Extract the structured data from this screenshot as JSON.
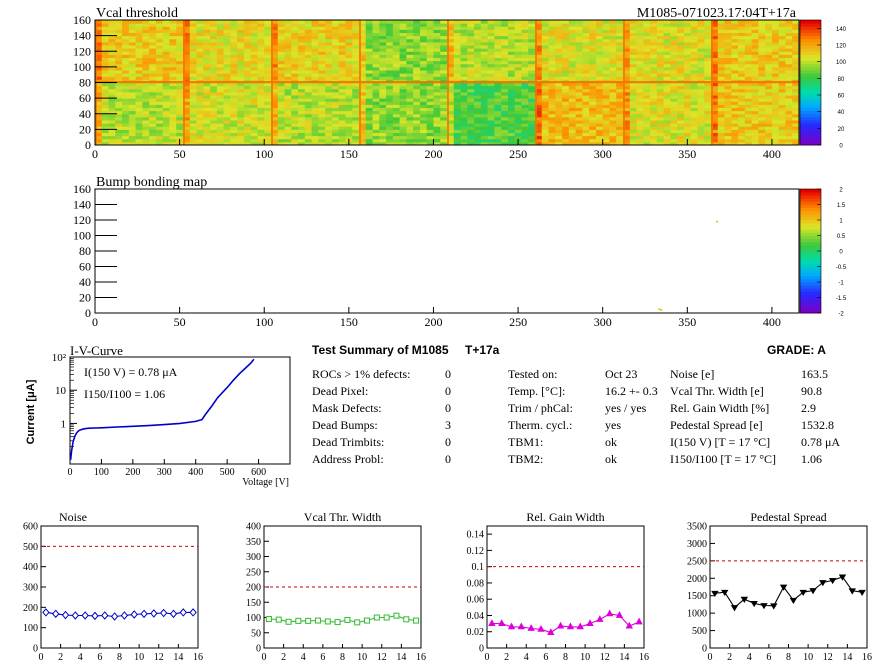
{
  "header": {
    "vcal_title": "Vcal threshold",
    "module_id": "M1085-071023.17:04T+17a",
    "bump_title": "Bump bonding map"
  },
  "summary": {
    "title": "Test Summary of M1085",
    "temp_label": "T+17a",
    "grade": "GRADE:  A",
    "col1": [
      {
        "label": "ROCs > 1% defects:",
        "value": "0"
      },
      {
        "label": "Dead Pixel:",
        "value": "0"
      },
      {
        "label": "Mask Defects:",
        "value": "0"
      },
      {
        "label": "Dead Bumps:",
        "value": "3"
      },
      {
        "label": "Dead Trimbits:",
        "value": "0"
      },
      {
        "label": "Address Probl:",
        "value": "0"
      }
    ],
    "col2": [
      {
        "label": "Tested on:",
        "value": "Oct 23"
      },
      {
        "label": "Temp. [°C]:",
        "value": "16.2 +- 0.3"
      },
      {
        "label": "Trim / phCal:",
        "value": "yes / yes"
      },
      {
        "label": "Therm. cycl.:",
        "value": "yes"
      },
      {
        "label": "TBM1:",
        "value": "ok"
      },
      {
        "label": "TBM2:",
        "value": "ok"
      }
    ],
    "col3": [
      {
        "label": "Noise [e]",
        "value": "163.5"
      },
      {
        "label": "Vcal Thr. Width [e]",
        "value": "90.8"
      },
      {
        "label": "Rel. Gain Width [%]",
        "value": "2.9"
      },
      {
        "label": "Pedestal Spread [e]",
        "value": "1532.8"
      },
      {
        "label": "I(150 V) [T = 17 °C]",
        "value": "0.78 μA"
      },
      {
        "label": "I150/I100  [T = 17 °C]",
        "value": "1.06"
      }
    ]
  },
  "colors": {
    "noise": "#0000cc",
    "vcal": "#33bb33",
    "gain": "#dd00dd",
    "pedestal": "#000000",
    "limit": "#cc0000",
    "iv": "#0000cc"
  },
  "chart_data": [
    {
      "type": "heatmap",
      "title": "Vcal threshold",
      "xlim": [
        0,
        416
      ],
      "ylim": [
        0,
        160
      ],
      "x_ticks": [
        "0",
        "50",
        "100",
        "150",
        "200",
        "250",
        "300",
        "350",
        "400"
      ],
      "y_ticks": [
        "0",
        "20",
        "40",
        "60",
        "80",
        "100",
        "120",
        "140",
        "160"
      ],
      "palette_ticks": [
        "0",
        "20",
        "40",
        "60",
        "80",
        "100",
        "120",
        "140"
      ],
      "zlim": [
        0,
        150
      ],
      "roc_blocks": [
        {
          "row": "top",
          "x": [
            0,
            52
          ],
          "mean": 112
        },
        {
          "row": "top",
          "x": [
            52,
            104
          ],
          "mean": 108
        },
        {
          "row": "top",
          "x": [
            104,
            156
          ],
          "mean": 110
        },
        {
          "row": "top",
          "x": [
            156,
            208
          ],
          "mean": 94
        },
        {
          "row": "top",
          "x": [
            208,
            260
          ],
          "mean": 100
        },
        {
          "row": "top",
          "x": [
            260,
            312
          ],
          "mean": 106
        },
        {
          "row": "top",
          "x": [
            312,
            364
          ],
          "mean": 106
        },
        {
          "row": "top",
          "x": [
            364,
            416
          ],
          "mean": 112
        },
        {
          "row": "bottom",
          "x": [
            0,
            52
          ],
          "mean": 100
        },
        {
          "row": "bottom",
          "x": [
            52,
            104
          ],
          "mean": 104
        },
        {
          "row": "bottom",
          "x": [
            104,
            156
          ],
          "mean": 100
        },
        {
          "row": "bottom",
          "x": [
            156,
            208
          ],
          "mean": 94
        },
        {
          "row": "bottom",
          "x": [
            208,
            260
          ],
          "mean": 84
        },
        {
          "row": "bottom",
          "x": [
            260,
            312
          ],
          "mean": 116
        },
        {
          "row": "bottom",
          "x": [
            312,
            364
          ],
          "mean": 106
        },
        {
          "row": "bottom",
          "x": [
            364,
            416
          ],
          "mean": 112
        }
      ]
    },
    {
      "type": "heatmap",
      "title": "Bump bonding map",
      "xlim": [
        0,
        416
      ],
      "ylim": [
        0,
        160
      ],
      "x_ticks": [
        "0",
        "50",
        "100",
        "150",
        "200",
        "250",
        "300",
        "350",
        "400"
      ],
      "y_ticks": [
        "0",
        "20",
        "40",
        "60",
        "80",
        "100",
        "120",
        "140",
        "160"
      ],
      "palette_ticks": [
        "-2",
        "-1.5",
        "-1",
        "-0.5",
        "0",
        "0.5",
        "1",
        "1.5",
        "2"
      ],
      "zlim": [
        -2,
        2
      ],
      "defects": [
        {
          "x": 367,
          "y": 117
        },
        {
          "x": 333,
          "y": 4
        },
        {
          "x": 334,
          "y": 3
        }
      ]
    },
    {
      "type": "line",
      "title": "I-V-Curve",
      "xlabel": "Voltage [V]",
      "ylabel": "Current [μA]",
      "xlim": [
        0,
        700
      ],
      "ylim": [
        0.06,
        100
      ],
      "yscale": "log",
      "x_ticks": [
        "0",
        "100",
        "200",
        "300",
        "400",
        "500",
        "600"
      ],
      "y_ticks": [
        "1",
        "10",
        "10²"
      ],
      "annotation1": "I(150 V) = 0.78 μA",
      "annotation2": "I150/I100 =  1.06",
      "x": [
        2,
        5,
        10,
        15,
        20,
        25,
        30,
        40,
        50,
        60,
        80,
        100,
        150,
        200,
        250,
        300,
        350,
        400,
        420,
        430,
        450,
        470,
        500,
        520,
        540,
        560,
        575,
        585
      ],
      "values": [
        0.08,
        0.15,
        0.28,
        0.4,
        0.5,
        0.57,
        0.62,
        0.67,
        0.7,
        0.72,
        0.73,
        0.74,
        0.78,
        0.82,
        0.86,
        0.92,
        1.0,
        1.15,
        1.3,
        1.8,
        3.2,
        6,
        12,
        20,
        32,
        48,
        65,
        85
      ]
    },
    {
      "type": "line",
      "title": "Noise",
      "xlim": [
        0,
        16
      ],
      "ylim": [
        0,
        600
      ],
      "x_ticks": [
        "0",
        "2",
        "4",
        "6",
        "8",
        "10",
        "12",
        "14",
        "16"
      ],
      "y_ticks": [
        "0",
        "100",
        "200",
        "300",
        "400",
        "500",
        "600"
      ],
      "limit": 500,
      "x": [
        0.5,
        1.5,
        2.5,
        3.5,
        4.5,
        5.5,
        6.5,
        7.5,
        8.5,
        9.5,
        10.5,
        11.5,
        12.5,
        13.5,
        14.5,
        15.5
      ],
      "values": [
        175,
        168,
        162,
        160,
        160,
        158,
        160,
        155,
        160,
        165,
        168,
        170,
        172,
        168,
        175,
        175
      ]
    },
    {
      "type": "line",
      "title": "Vcal Thr. Width",
      "xlim": [
        0,
        16
      ],
      "ylim": [
        0,
        400
      ],
      "x_ticks": [
        "0",
        "2",
        "4",
        "6",
        "8",
        "10",
        "12",
        "14",
        "16"
      ],
      "y_ticks": [
        "0",
        "50",
        "100",
        "150",
        "200",
        "250",
        "300",
        "350",
        "400"
      ],
      "limit": 200,
      "x": [
        0.5,
        1.5,
        2.5,
        3.5,
        4.5,
        5.5,
        6.5,
        7.5,
        8.5,
        9.5,
        10.5,
        11.5,
        12.5,
        13.5,
        14.5,
        15.5
      ],
      "values": [
        95,
        93,
        86,
        89,
        89,
        90,
        87,
        85,
        92,
        84,
        90,
        100,
        100,
        106,
        94,
        90
      ]
    },
    {
      "type": "line",
      "title": "Rel. Gain Width",
      "xlim": [
        0,
        16
      ],
      "ylim": [
        0,
        0.15
      ],
      "x_ticks": [
        "0",
        "2",
        "4",
        "6",
        "8",
        "10",
        "12",
        "14",
        "16"
      ],
      "y_ticks": [
        "0",
        "0.02",
        "0.04",
        "0.06",
        "0.08",
        "0.1",
        "0.12",
        "0.14"
      ],
      "limit": 0.1,
      "x": [
        0.5,
        1.5,
        2.5,
        3.5,
        4.5,
        5.5,
        6.5,
        7.5,
        8.5,
        9.5,
        10.5,
        11.5,
        12.5,
        13.5,
        14.5,
        15.5
      ],
      "values": [
        0.03,
        0.03,
        0.026,
        0.026,
        0.024,
        0.023,
        0.019,
        0.027,
        0.026,
        0.026,
        0.03,
        0.035,
        0.042,
        0.04,
        0.027,
        0.032
      ]
    },
    {
      "type": "line",
      "title": "Pedestal Spread",
      "xlim": [
        0,
        16
      ],
      "ylim": [
        0,
        3500
      ],
      "x_ticks": [
        "0",
        "2",
        "4",
        "6",
        "8",
        "10",
        "12",
        "14",
        "16"
      ],
      "y_ticks": [
        "0",
        "500",
        "1000",
        "1500",
        "2000",
        "2500",
        "3000",
        "3500"
      ],
      "limit": 2500,
      "x": [
        0.5,
        1.5,
        2.5,
        3.5,
        4.5,
        5.5,
        6.5,
        7.5,
        8.5,
        9.5,
        10.5,
        11.5,
        12.5,
        13.5,
        14.5,
        15.5
      ],
      "values": [
        1570,
        1600,
        1160,
        1400,
        1280,
        1220,
        1210,
        1750,
        1370,
        1600,
        1650,
        1880,
        1940,
        2040,
        1640,
        1600
      ]
    }
  ]
}
